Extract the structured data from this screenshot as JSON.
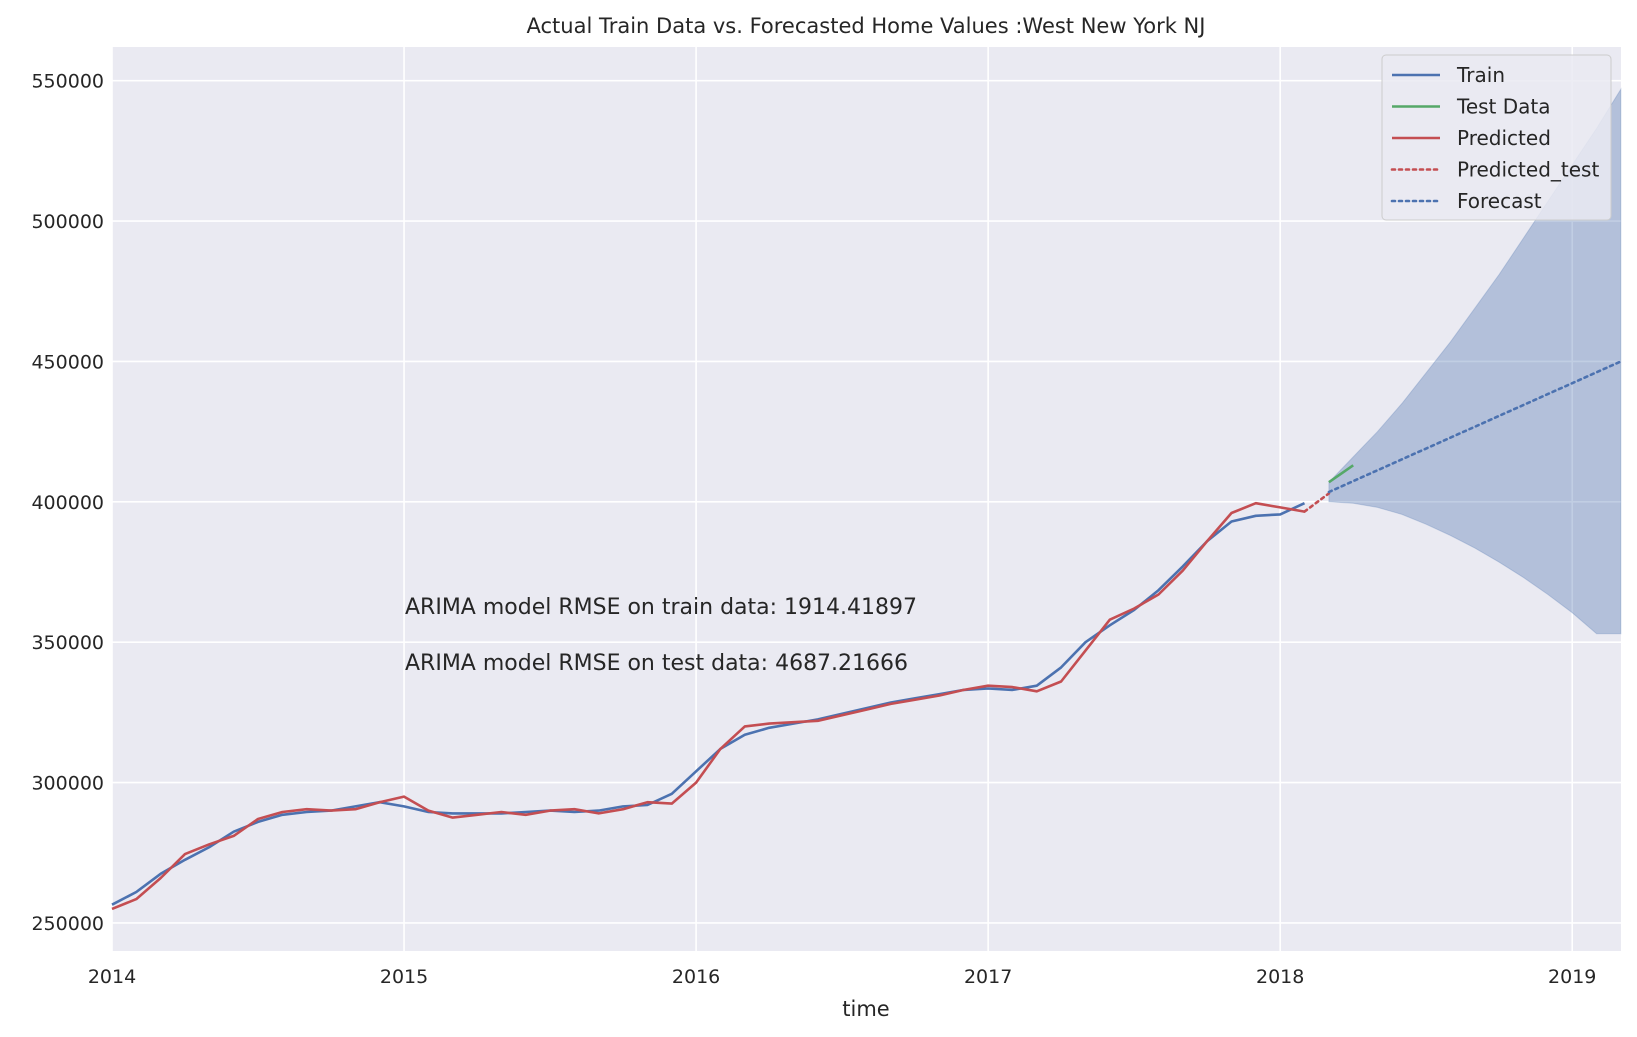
{
  "chart_data": {
    "type": "line",
    "title": "Actual Train Data vs. Forecasted Home Values :West New York NJ",
    "xlabel": "time",
    "ylabel": "",
    "xlim": [
      2014.0,
      2019.167
    ],
    "ylim": [
      240000,
      562000
    ],
    "grid": true,
    "legend_placement": "top-right",
    "x_ticks": [
      "2014",
      "2015",
      "2016",
      "2017",
      "2018",
      "2019"
    ],
    "y_ticks": [
      "250000",
      "300000",
      "350000",
      "400000",
      "450000",
      "500000",
      "550000"
    ],
    "annotations": [
      "ARIMA model RMSE on train data: 1914.41897",
      "ARIMA model RMSE on test data: 4687.21666"
    ],
    "colors": {
      "train": "#4c72b0",
      "test": "#55a868",
      "predicted": "#c44e52",
      "forecast": "#4c72b0",
      "ci_fill": "#4c72b0",
      "background": "#eaeaf2"
    },
    "series": [
      {
        "name": "Train",
        "style": "solid",
        "color": "#4c72b0",
        "x": [
          "2014-01",
          "2014-02",
          "2014-03",
          "2014-04",
          "2014-05",
          "2014-06",
          "2014-07",
          "2014-08",
          "2014-09",
          "2014-10",
          "2014-11",
          "2014-12",
          "2015-01",
          "2015-02",
          "2015-03",
          "2015-04",
          "2015-05",
          "2015-06",
          "2015-07",
          "2015-08",
          "2015-09",
          "2015-10",
          "2015-11",
          "2015-12",
          "2016-01",
          "2016-02",
          "2016-03",
          "2016-04",
          "2016-05",
          "2016-06",
          "2016-07",
          "2016-08",
          "2016-09",
          "2016-10",
          "2016-11",
          "2016-12",
          "2017-01",
          "2017-02",
          "2017-03",
          "2017-04",
          "2017-05",
          "2017-06",
          "2017-07",
          "2017-08",
          "2017-09",
          "2017-10",
          "2017-11",
          "2017-12",
          "2018-01",
          "2018-02"
        ],
        "values": [
          256500,
          261000,
          267500,
          272500,
          277000,
          282500,
          286000,
          288500,
          289500,
          290000,
          291500,
          293000,
          291500,
          289500,
          289000,
          289000,
          289000,
          289500,
          290000,
          289500,
          290000,
          291500,
          292000,
          296000,
          304000,
          312000,
          317000,
          319500,
          321000,
          322500,
          324500,
          326500,
          328500,
          330000,
          331500,
          333000,
          333500,
          333000,
          334500,
          341000,
          350000,
          356000,
          361500,
          368500,
          377000,
          386000,
          393000,
          395000,
          395500,
          399500
        ]
      },
      {
        "name": "Test Data",
        "style": "solid",
        "color": "#55a868",
        "x": [
          "2018-03",
          "2018-04"
        ],
        "values": [
          407000,
          413000
        ]
      },
      {
        "name": "Predicted",
        "style": "solid",
        "color": "#c44e52",
        "x": [
          "2014-01",
          "2014-02",
          "2014-03",
          "2014-04",
          "2014-05",
          "2014-06",
          "2014-07",
          "2014-08",
          "2014-09",
          "2014-10",
          "2014-11",
          "2014-12",
          "2015-01",
          "2015-02",
          "2015-03",
          "2015-04",
          "2015-05",
          "2015-06",
          "2015-07",
          "2015-08",
          "2015-09",
          "2015-10",
          "2015-11",
          "2015-12",
          "2016-01",
          "2016-02",
          "2016-03",
          "2016-04",
          "2016-05",
          "2016-06",
          "2016-07",
          "2016-08",
          "2016-09",
          "2016-10",
          "2016-11",
          "2016-12",
          "2017-01",
          "2017-02",
          "2017-03",
          "2017-04",
          "2017-05",
          "2017-06",
          "2017-07",
          "2017-08",
          "2017-09",
          "2017-10",
          "2017-11",
          "2017-12",
          "2018-01",
          "2018-02"
        ],
        "values": [
          255000,
          258500,
          266000,
          274500,
          278000,
          281000,
          287000,
          289500,
          290500,
          290000,
          290500,
          293000,
          295000,
          290000,
          287500,
          288500,
          289500,
          288500,
          290000,
          290500,
          289000,
          290500,
          293000,
          292500,
          300000,
          312000,
          320000,
          321000,
          321500,
          322000,
          324000,
          326000,
          328000,
          329500,
          331000,
          333000,
          334500,
          334000,
          332500,
          336000,
          347000,
          358000,
          362000,
          367000,
          375500,
          386000,
          396000,
          399500,
          398000,
          396500
        ]
      },
      {
        "name": "Predicted_test",
        "style": "dotted",
        "color": "#c44e52",
        "x": [
          "2018-02",
          "2018-03"
        ],
        "values": [
          396500,
          403000
        ]
      },
      {
        "name": "Forecast",
        "style": "dotted",
        "color": "#4c72b0",
        "x": [
          "2018-03",
          "2019-03"
        ],
        "values": [
          403500,
          450000
        ],
        "ci_x": [
          "2018-03",
          "2018-04",
          "2018-05",
          "2018-06",
          "2018-07",
          "2018-08",
          "2018-09",
          "2018-10",
          "2018-11",
          "2018-12",
          "2019-01",
          "2019-02",
          "2019-03"
        ],
        "ci_upper": [
          407000,
          416000,
          425000,
          435000,
          446000,
          457000,
          469000,
          481000,
          494000,
          507000,
          520000,
          533000,
          547000
        ],
        "ci_lower": [
          400000,
          399500,
          398000,
          395500,
          392000,
          388000,
          383500,
          378500,
          373000,
          367000,
          360500,
          353000,
          353000
        ]
      }
    ]
  }
}
